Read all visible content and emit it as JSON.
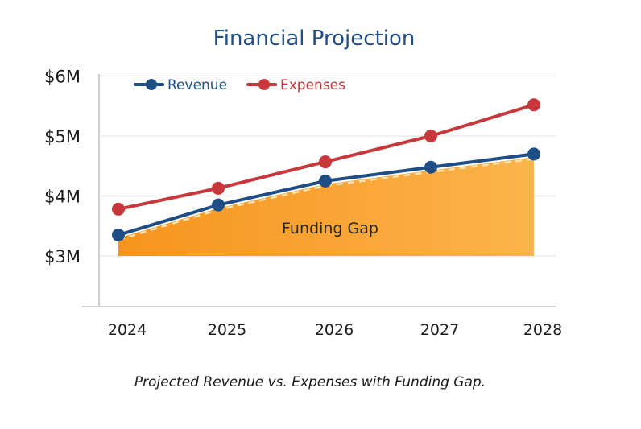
{
  "chart_data": {
    "type": "line",
    "title": "Financial Projection",
    "caption": "Projected Revenue vs. Expenses with Funding Gap.",
    "categories": [
      "2024",
      "2025",
      "2026",
      "2027",
      "2028"
    ],
    "y_tick_labels": [
      "$6M",
      "$5M",
      "$4M",
      "$3M"
    ],
    "y_ticks": [
      6,
      5,
      4,
      3
    ],
    "ylim": [
      2.1,
      6
    ],
    "grid": true,
    "legend_position": "top-left",
    "series": [
      {
        "name": "Revenue",
        "values": [
          3.35,
          3.85,
          4.25,
          4.48,
          4.7
        ],
        "color": "#1f4e86"
      },
      {
        "name": "Expenses",
        "values": [
          3.78,
          4.13,
          4.57,
          5.0,
          5.52
        ],
        "color": "#c8373a"
      }
    ],
    "annotations": [
      {
        "text": "Funding Gap",
        "fill_colors": [
          "#f7941d",
          "#fbb44c"
        ]
      }
    ]
  }
}
